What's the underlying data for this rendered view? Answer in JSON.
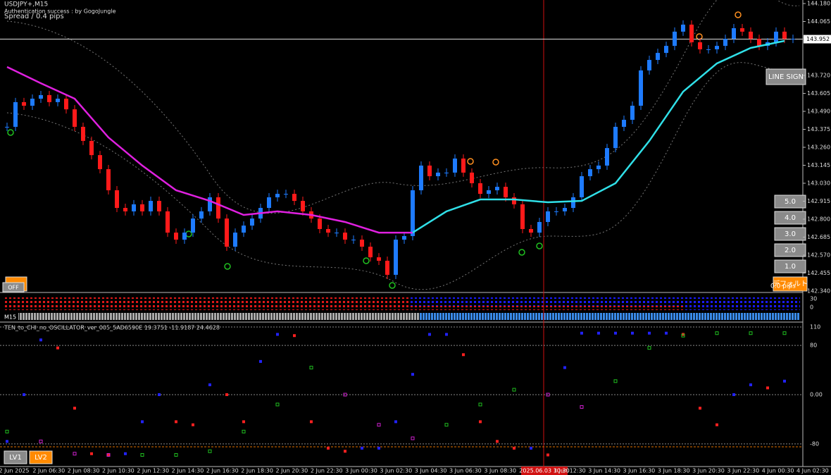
{
  "header": {
    "symbol": "USDJPY+,M15",
    "auth": "Authentication success : by GogoJungle",
    "spread": "Spread / 0.4 pips"
  },
  "buttons": {
    "line_sign": "LINE SIGN",
    "levels": [
      "5.0",
      "4.0",
      "3.0",
      "2.0",
      "1.0"
    ],
    "off": "OFF",
    "default": "デフォルト",
    "pips": "0.0 pips"
  },
  "price_chart": {
    "ylim": [
      142.34,
      144.18
    ],
    "yticks": [
      {
        "value": 144.18,
        "label": "144.180"
      },
      {
        "value": 144.065,
        "label": "144.065"
      },
      {
        "value": 143.72,
        "label": "143.720"
      },
      {
        "value": 143.605,
        "label": "143.605"
      },
      {
        "value": 143.49,
        "label": "143.490"
      },
      {
        "value": 143.375,
        "label": "143.375"
      },
      {
        "value": 143.26,
        "label": "143.260"
      },
      {
        "value": 143.145,
        "label": "143.145"
      },
      {
        "value": 143.03,
        "label": "143.030"
      },
      {
        "value": 142.915,
        "label": "142.915"
      },
      {
        "value": 142.8,
        "label": "142.800"
      },
      {
        "value": 142.685,
        "label": "142.685"
      },
      {
        "value": 142.57,
        "label": "142.570"
      },
      {
        "value": 142.455,
        "label": "142.455"
      },
      {
        "value": 142.34,
        "label": "142.340"
      }
    ],
    "current_price": {
      "value": 143.952,
      "label": "143.952"
    },
    "rising_color": "#1e7bff",
    "falling_color": "#ff1a1a",
    "closes": [
      143.391,
      143.549,
      143.526,
      143.571,
      143.594,
      143.549,
      143.571,
      143.503,
      143.391,
      143.301,
      143.21,
      143.12,
      142.985,
      142.872,
      142.85,
      142.895,
      142.85,
      142.917,
      142.85,
      142.714,
      142.669,
      142.714,
      142.804,
      142.85,
      142.94,
      142.804,
      142.624,
      142.714,
      142.759,
      142.804,
      142.872,
      142.94,
      142.962,
      142.962,
      142.917,
      142.85,
      142.804,
      142.737,
      142.714,
      142.714,
      142.669,
      142.669,
      142.624,
      142.556,
      142.534,
      142.444,
      142.669,
      142.692,
      142.985,
      143.143,
      143.075,
      143.098,
      143.098,
      143.188,
      143.098,
      143.03,
      142.962,
      142.985,
      143.007,
      142.94,
      142.895,
      142.737,
      142.714,
      142.782,
      142.85,
      142.85,
      142.872,
      142.94,
      143.075,
      143.12,
      143.143,
      143.255,
      143.391,
      143.436,
      143.526,
      143.752,
      143.819,
      143.864,
      143.909,
      144.0,
      144.045,
      143.932,
      143.887,
      143.887,
      143.909,
      143.954,
      144.022,
      144.0,
      143.954,
      143.909,
      143.932,
      144.0,
      143.954,
      143.954
    ],
    "ma": [
      {
        "color": "#e020e0",
        "x_index": [
          0,
          4,
          8,
          12,
          16,
          20,
          24,
          28,
          32,
          36,
          40,
          44,
          48
        ],
        "values": [
          143.774,
          143.67,
          143.571,
          143.323,
          143.143,
          142.985,
          142.917,
          142.827,
          142.85,
          142.827,
          142.782,
          142.714,
          142.714
        ]
      },
      {
        "color": "#30e0e8",
        "x_index": [
          48,
          52,
          56,
          60,
          64,
          68,
          72,
          76,
          80,
          84,
          88,
          92
        ],
        "values": [
          142.714,
          142.85,
          142.926,
          142.926,
          142.908,
          142.917,
          143.03,
          143.301,
          143.616,
          143.797,
          143.896,
          143.941
        ]
      }
    ]
  },
  "strip": {
    "label": "M15",
    "ticks": [
      "30",
      "0"
    ]
  },
  "oscillator": {
    "title": "TEN_to_CHI_no_OSCILLATOR_ver_005_5AD6590E 19.3751 -11.9187 24.4628",
    "ylim": [
      -110,
      110
    ],
    "yticks": [
      110,
      80,
      {
        "value": 0,
        "label": "0.00"
      },
      -80
    ],
    "fast": {
      "rising_color": "#2222ff",
      "falling_color": "#ff2020",
      "x_index": [
        0,
        2,
        4,
        6,
        8,
        10,
        12,
        14,
        16,
        18,
        20,
        22,
        24,
        26,
        28,
        30,
        32,
        34,
        36,
        38,
        40,
        42,
        44,
        46,
        48,
        50,
        52,
        54,
        56,
        58,
        60,
        62,
        64,
        66,
        68,
        70,
        72,
        74,
        76,
        78,
        80,
        82,
        84,
        86,
        88,
        90,
        92
      ],
      "values": [
        -76,
        0,
        89,
        76,
        -22,
        -96,
        -98,
        -96,
        -44,
        0,
        -44,
        -49,
        16,
        0,
        -44,
        54,
        98,
        96,
        -44,
        -87,
        -92,
        -87,
        -87,
        -44,
        33,
        98,
        98,
        65,
        -44,
        -76,
        -87,
        -87,
        -98,
        44,
        100,
        100,
        100,
        100,
        100,
        100,
        98,
        -22,
        -49,
        0,
        16,
        11,
        22
      ]
    },
    "slow": {
      "rising_color": "#20c020",
      "falling_color": "#d020d0",
      "x_index": [
        0,
        4,
        8,
        12,
        16,
        20,
        24,
        28,
        32,
        36,
        40,
        44,
        48,
        52,
        56,
        60,
        64,
        68,
        72,
        76,
        80,
        84,
        88,
        92
      ],
      "values": [
        -60,
        -76,
        -96,
        -98,
        -98,
        -98,
        -92,
        -60,
        -16,
        44,
        0,
        -49,
        -71,
        -49,
        -16,
        8,
        0,
        -20,
        22,
        76,
        96,
        100,
        100,
        100
      ]
    },
    "levels": {
      "lv1": "LV1",
      "lv2": "LV2"
    }
  },
  "time_axis": {
    "labels": [
      "2 Jun 2025",
      "2 Jun 06:30",
      "2 Jun 08:30",
      "2 Jun 10:30",
      "2 Jun 12:30",
      "2 Jun 14:30",
      "2 Jun 16:30",
      "2 Jun 18:30",
      "2 Jun 20:30",
      "2 Jun 22:30",
      "3 Jun 00:30",
      "3 Jun 02:30",
      "3 Jun 04:30",
      "3 Jun 06:30",
      "3 Jun 08:30",
      null,
      "3 Jun 12:30",
      "3 Jun 14:30",
      "3 Jun 16:30",
      "3 Jun 18:30",
      "3 Jun 20:30",
      "3 Jun 22:30",
      "4 Jun 00:30",
      "4 Jun 02:30"
    ],
    "cursor": "2025.06.03 10:30"
  }
}
